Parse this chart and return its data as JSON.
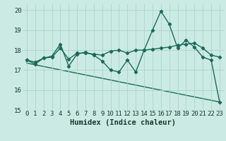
{
  "title": "",
  "xlabel": "Humidex (Indice chaleur)",
  "xlim": [
    -0.5,
    23.5
  ],
  "ylim": [
    15,
    20.3
  ],
  "yticks": [
    15,
    16,
    17,
    18,
    19,
    20
  ],
  "xticks": [
    0,
    1,
    2,
    3,
    4,
    5,
    6,
    7,
    8,
    9,
    10,
    11,
    12,
    13,
    14,
    15,
    16,
    17,
    18,
    19,
    20,
    21,
    22,
    23
  ],
  "background_color": "#cceae4",
  "grid_color": "#aad4cc",
  "line_color": "#1a6b5a",
  "line1_y": [
    17.5,
    17.3,
    17.6,
    17.7,
    18.3,
    17.2,
    17.8,
    17.9,
    17.75,
    17.45,
    17.0,
    16.9,
    17.5,
    16.9,
    18.0,
    19.0,
    19.95,
    19.3,
    18.1,
    18.5,
    18.15,
    17.65,
    17.5,
    15.4
  ],
  "line2_y": [
    17.5,
    17.4,
    17.6,
    17.65,
    18.1,
    17.55,
    17.85,
    17.85,
    17.8,
    17.75,
    17.95,
    18.0,
    17.85,
    18.0,
    18.0,
    18.05,
    18.1,
    18.15,
    18.25,
    18.3,
    18.35,
    18.1,
    17.75,
    17.65
  ],
  "line3_y_start": 17.35,
  "line3_y_end": 15.4,
  "marker": "D",
  "marker_size": 2.2,
  "line_width": 1.0,
  "font_color": "#1a3a2a",
  "tick_fontsize": 6.5,
  "xlabel_fontsize": 7.5
}
